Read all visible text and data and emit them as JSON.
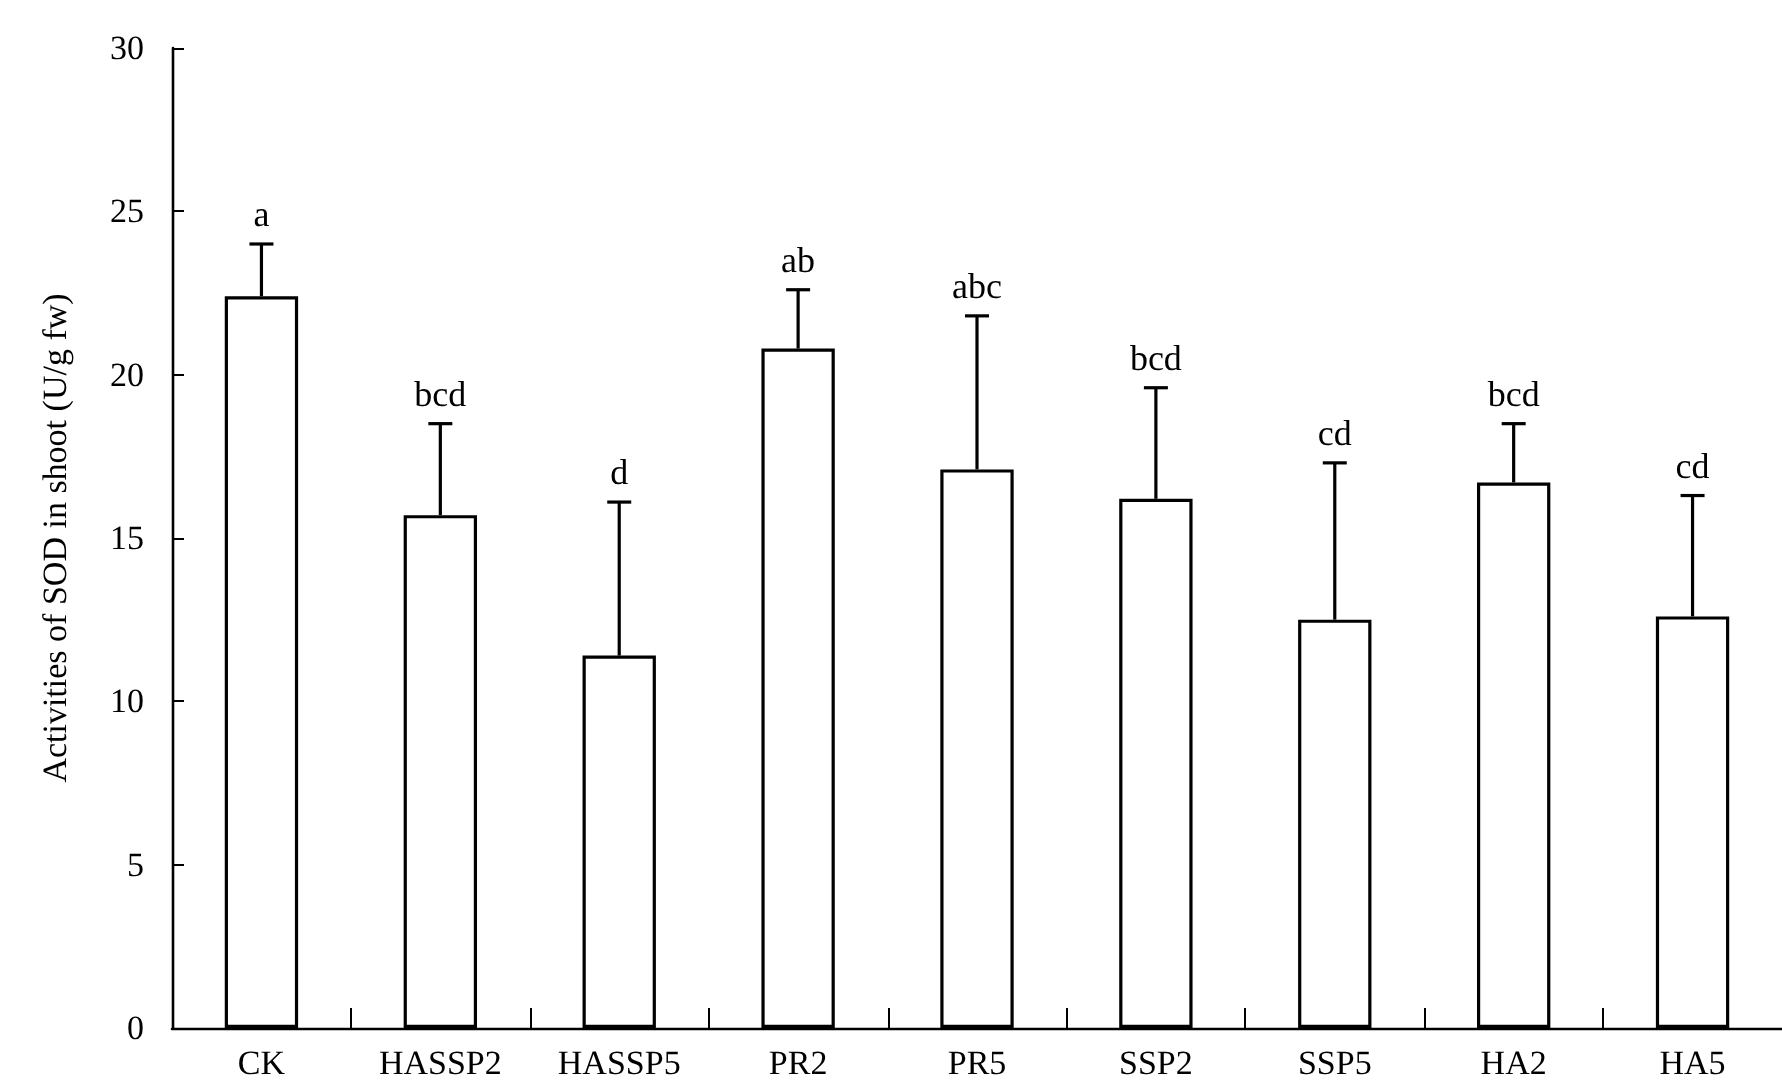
{
  "chart_data": {
    "type": "bar",
    "ylabel": "Activities of SOD in shoot (U/g fw)",
    "categories": [
      "CK",
      "HASSP2",
      "HASSP5",
      "PR2",
      "PR5",
      "SSP2",
      "SSP5",
      "HA2",
      "HA5"
    ],
    "values": [
      22.4,
      15.7,
      11.4,
      20.8,
      17.1,
      16.2,
      12.5,
      16.7,
      12.6
    ],
    "errors": [
      [
        22.4,
        24.0
      ],
      [
        15.7,
        18.5
      ],
      [
        11.4,
        16.1
      ],
      [
        20.8,
        22.6
      ],
      [
        17.1,
        21.8
      ],
      [
        16.2,
        19.6
      ],
      [
        12.5,
        17.3
      ],
      [
        16.7,
        18.5
      ],
      [
        12.6,
        16.3
      ]
    ],
    "color": "#ffffff",
    "ylim": [
      0,
      30
    ],
    "yticks": [
      0,
      5,
      10,
      15,
      20,
      25,
      30
    ],
    "annotations": [
      {
        "text": "a",
        "x": "CK",
        "y": 24.0
      },
      {
        "text": "bcd",
        "x": "HASSP2",
        "y": 18.5
      },
      {
        "text": "d",
        "x": "HASSP5",
        "y": 16.1
      },
      {
        "text": "ab",
        "x": "PR2",
        "y": 22.6
      },
      {
        "text": "abc",
        "x": "PR5",
        "y": 21.8
      },
      {
        "text": "bcd",
        "x": "SSP2",
        "y": 19.6
      },
      {
        "text": "cd",
        "x": "SSP5",
        "y": 17.3
      },
      {
        "text": "bcd",
        "x": "HA2",
        "y": 18.5
      },
      {
        "text": "cd",
        "x": "HA5",
        "y": 16.3
      }
    ]
  }
}
